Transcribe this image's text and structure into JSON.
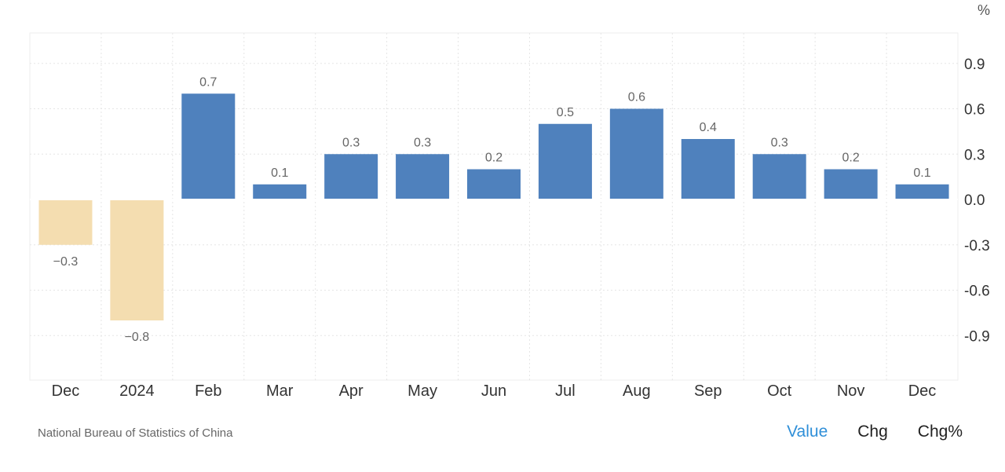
{
  "chart_data": {
    "type": "bar",
    "unit": "%",
    "categories": [
      "Dec",
      "2024",
      "Feb",
      "Mar",
      "Apr",
      "May",
      "Jun",
      "Jul",
      "Aug",
      "Sep",
      "Oct",
      "Nov",
      "Dec"
    ],
    "values": [
      -0.3,
      -0.8,
      0.7,
      0.1,
      0.3,
      0.3,
      0.2,
      0.5,
      0.6,
      0.4,
      0.3,
      0.2,
      0.1
    ],
    "value_labels": [
      "−0.3",
      "−0.8",
      "0.7",
      "0.1",
      "0.3",
      "0.3",
      "0.2",
      "0.5",
      "0.6",
      "0.4",
      "0.3",
      "0.2",
      "0.1"
    ],
    "y_ticks": [
      0.9,
      0.6,
      0.3,
      0.0,
      -0.3,
      -0.6,
      -0.9
    ],
    "y_tick_labels": [
      "0.9",
      "0.6",
      "0.3",
      "0.0",
      "-0.3",
      "-0.6",
      "-0.9"
    ],
    "ylim": [
      -1.2,
      1.1
    ],
    "grid": true,
    "y_axis_side": "right",
    "colors": {
      "positive": "#4f81bd",
      "negative": "#f4ddb0"
    }
  },
  "footer": {
    "source": "National Bureau of Statistics of China",
    "tabs": [
      {
        "label": "Value",
        "active": true
      },
      {
        "label": "Chg",
        "active": false
      },
      {
        "label": "Chg%",
        "active": false
      }
    ],
    "active_color": "#2f8fd8"
  }
}
